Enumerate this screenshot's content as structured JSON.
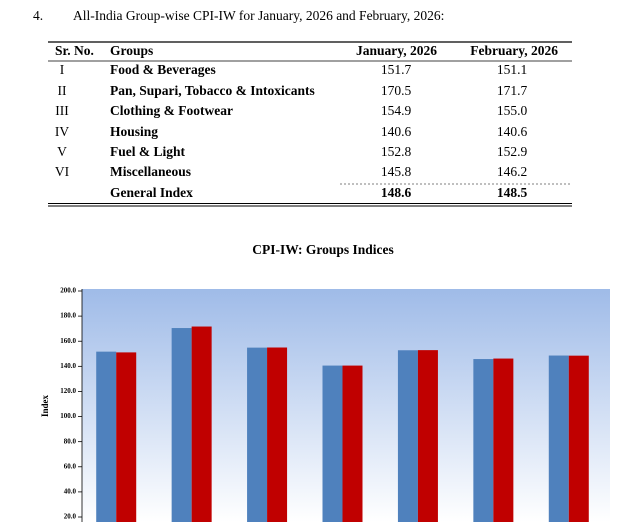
{
  "item_number": "4.",
  "heading": "All-India Group-wise CPI-IW for January, 2026 and February, 2026:",
  "table": {
    "header": [
      "Sr. No.",
      "Groups",
      "January, 2026",
      "February, 2026"
    ],
    "rows": [
      [
        "I",
        "Food & Beverages",
        "151.7",
        "151.1"
      ],
      [
        "II",
        "Pan, Supari, Tobacco & Intoxicants",
        "170.5",
        "171.7"
      ],
      [
        "III",
        "Clothing & Footwear",
        "154.9",
        "155.0"
      ],
      [
        "IV",
        "Housing",
        "140.6",
        "140.6"
      ],
      [
        "V",
        "Fuel & Light",
        "152.8",
        "152.9"
      ],
      [
        "VI",
        "Miscellaneous",
        "145.8",
        "146.2"
      ]
    ],
    "total": [
      "General Index",
      "148.6",
      "148.5"
    ]
  },
  "chart_data": {
    "type": "bar",
    "title": "CPI-IW: Groups Indices",
    "y_label": "Index",
    "series": [
      {
        "color": "#4f81bd",
        "values": [
          151.7,
          170.5,
          154.9,
          140.6,
          152.8,
          145.8,
          148.6
        ]
      },
      {
        "color": "#c00000",
        "values": [
          151.1,
          171.7,
          155.0,
          140.6,
          152.9,
          146.2,
          148.5
        ]
      }
    ],
    "ylim": [
      20,
      200
    ],
    "yticks": [
      {
        "value": 200,
        "label": "200.0"
      },
      {
        "value": 180,
        "label": "180.0"
      },
      {
        "value": 160,
        "label": "160.0"
      },
      {
        "value": 140,
        "label": "140.0"
      },
      {
        "value": 120,
        "label": "120.0"
      },
      {
        "value": 100,
        "label": "100.0"
      },
      {
        "value": 80,
        "label": "80.0"
      },
      {
        "value": 60,
        "label": "60.0"
      },
      {
        "value": 40,
        "label": "40.0"
      },
      {
        "value": 20,
        "label": "20.0"
      }
    ]
  }
}
